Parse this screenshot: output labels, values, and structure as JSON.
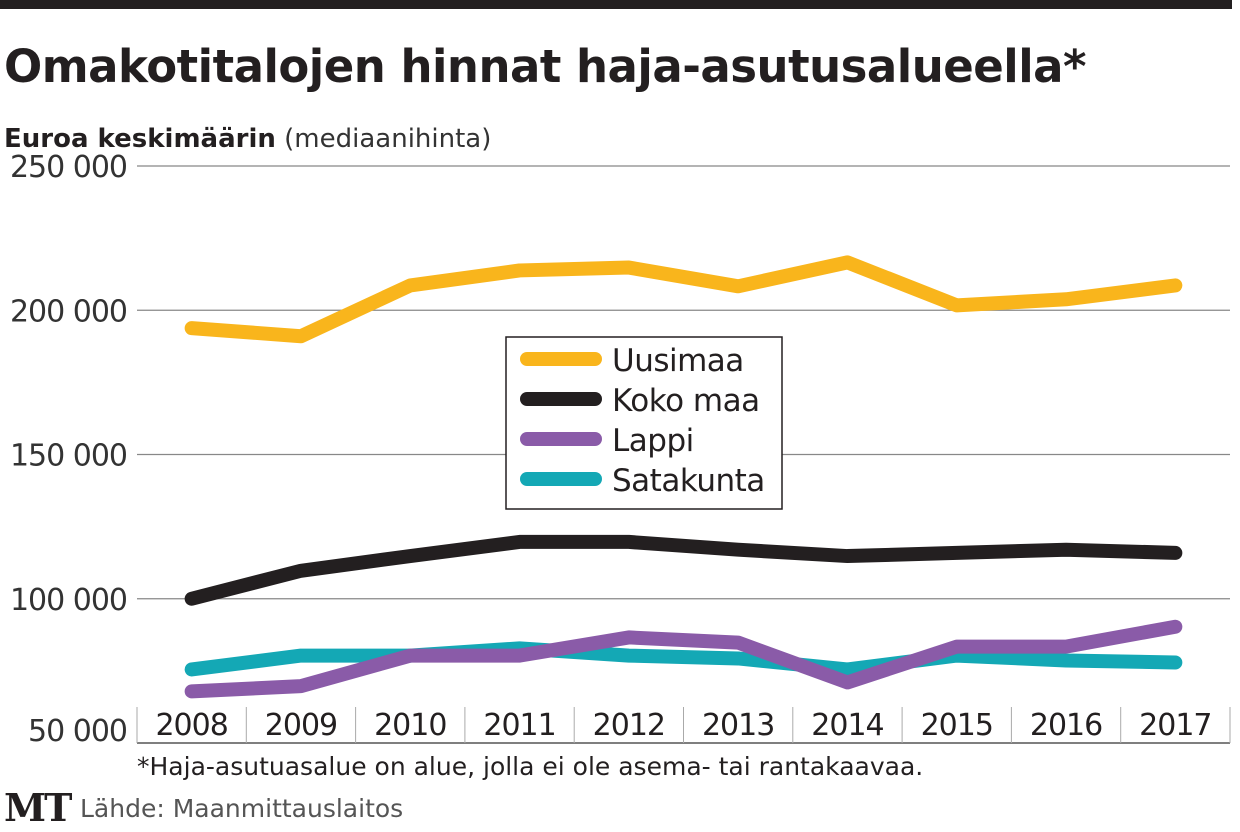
{
  "chart_data": {
    "type": "line",
    "title": "Omakotitalojen hinnat haja-asutusalueella*",
    "subtitle_bold": "Euroa keskimäärin",
    "subtitle_normal": "(mediaanihinta)",
    "xlabel": "",
    "ylabel": "",
    "categories": [
      "2008",
      "2009",
      "2010",
      "2011",
      "2012",
      "2013",
      "2014",
      "2015",
      "2016",
      "2017"
    ],
    "ylim": [
      50000,
      250000
    ],
    "yticks": [
      50000,
      100000,
      150000,
      200000,
      250000
    ],
    "ytick_labels": [
      "50 000",
      "100 000",
      "150 000",
      "200 000",
      "250 000"
    ],
    "grid": true,
    "legend_position": "center",
    "series": [
      {
        "name": "Uusimaa",
        "color": "#f9b51c",
        "values": [
          193800,
          191000,
          208600,
          213800,
          214800,
          208300,
          216600,
          201700,
          203800,
          208600
        ]
      },
      {
        "name": "Koko maa",
        "color": "#231f20",
        "values": [
          100000,
          109700,
          114800,
          119700,
          119700,
          117000,
          114800,
          115900,
          117000,
          115900
        ]
      },
      {
        "name": "Lappi",
        "color": "#8a5ba8",
        "values": [
          67900,
          69700,
          80300,
          80300,
          86600,
          84800,
          71000,
          83400,
          83400,
          90300
        ]
      },
      {
        "name": "Satakunta",
        "color": "#14a8b5",
        "values": [
          75500,
          80300,
          80300,
          82800,
          80300,
          79300,
          75500,
          80300,
          78600,
          77900
        ]
      }
    ],
    "footnote": "*Haja-asutuasalue on alue, jolla ei ole asema- tai rantakaavaa.",
    "source": "Lähde: Maanmittauslaitos",
    "logo": "MT"
  }
}
